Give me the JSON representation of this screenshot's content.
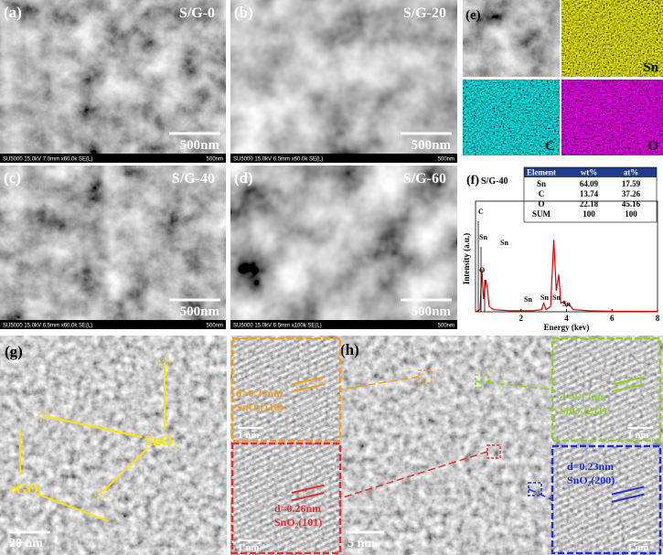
{
  "panels": [
    {
      "label": "(a)",
      "sample": "S/G-0",
      "scale_bar": "500nm",
      "footer": "SU5000 15.0kV 7.0mm x60.0k SE(L)",
      "footer_scale": "500nm"
    },
    {
      "label": "(b)",
      "sample": "S/G-20",
      "scale_bar": "500nm",
      "footer": "SU5000 15.0kV 6.5mm x60.0k SE(L)",
      "footer_scale": "500nm"
    },
    {
      "label": "(c)",
      "sample": "S/G-40",
      "scale_bar": "500nm",
      "footer": "SU5000 15.0kV 6.5mm x60.0k SE(L)",
      "footer_scale": "500nm"
    },
    {
      "label": "(d)",
      "sample": "S/G-60",
      "scale_bar": "500nm",
      "footer": "SU5000 15.0kV 6.5mm x100k SE(L)",
      "footer_scale": "500nm"
    }
  ],
  "mapping": {
    "label": "(e)",
    "elements": [
      "Sn",
      "C",
      "O"
    ]
  },
  "eds": {
    "label": "(f)",
    "sample": "S/G-40",
    "table": {
      "header": [
        "Element",
        "wt%",
        "at%"
      ],
      "rows": [
        [
          "Sn",
          "64.09",
          "17.59"
        ],
        [
          "C",
          "13.74",
          "37.26"
        ],
        [
          "O",
          "22.18",
          "45.16"
        ],
        [
          "SUM",
          "100",
          "100"
        ]
      ]
    },
    "spectrum": {
      "type": "line",
      "x_label": "Energy (kev)",
      "y_label": "Intensity (a.u.)",
      "color": "#e00000",
      "xlim": [
        0,
        8
      ],
      "xticks": [
        2,
        4,
        6,
        8
      ],
      "ylim": [
        0,
        100
      ],
      "x": [
        0,
        0.2,
        0.28,
        0.35,
        0.45,
        0.52,
        0.6,
        0.8,
        1.5,
        2.5,
        2.9,
        3.0,
        3.1,
        3.3,
        3.44,
        3.55,
        3.66,
        3.75,
        3.9,
        4.0,
        4.1,
        4.3,
        5,
        6,
        8
      ],
      "values": [
        0,
        2,
        40,
        12,
        30,
        22,
        5,
        2,
        1,
        1,
        2,
        8,
        2,
        5,
        68,
        20,
        35,
        8,
        10,
        5,
        7,
        2,
        1,
        0.5,
        0.3
      ],
      "peak_labels": [
        "C",
        "Sn",
        "O",
        "Sn",
        "Sn",
        "Sn",
        "Sn",
        "Sn"
      ]
    }
  },
  "tem": {
    "label": "(g)",
    "particle": "SnO₂",
    "support": "rGO",
    "scale_bar": "20 nm"
  },
  "hrtem": {
    "label": "(h)",
    "scale_bar": "5 nm",
    "insets": [
      {
        "spacing": "d=0.33nm",
        "plane": "SnO₂(110)",
        "scale_bar": "1 nm"
      },
      {
        "spacing": "d=0.26nm",
        "plane": "SnO₂(101)",
        "scale_bar": "1 nm"
      },
      {
        "spacing": "d=0.17nm",
        "plane": "SnO₂(211)",
        "scale_bar": "1 nm"
      },
      {
        "spacing": "d=0.23nm",
        "plane": "SnO₂(200)",
        "scale_bar": "1 nm"
      }
    ]
  }
}
